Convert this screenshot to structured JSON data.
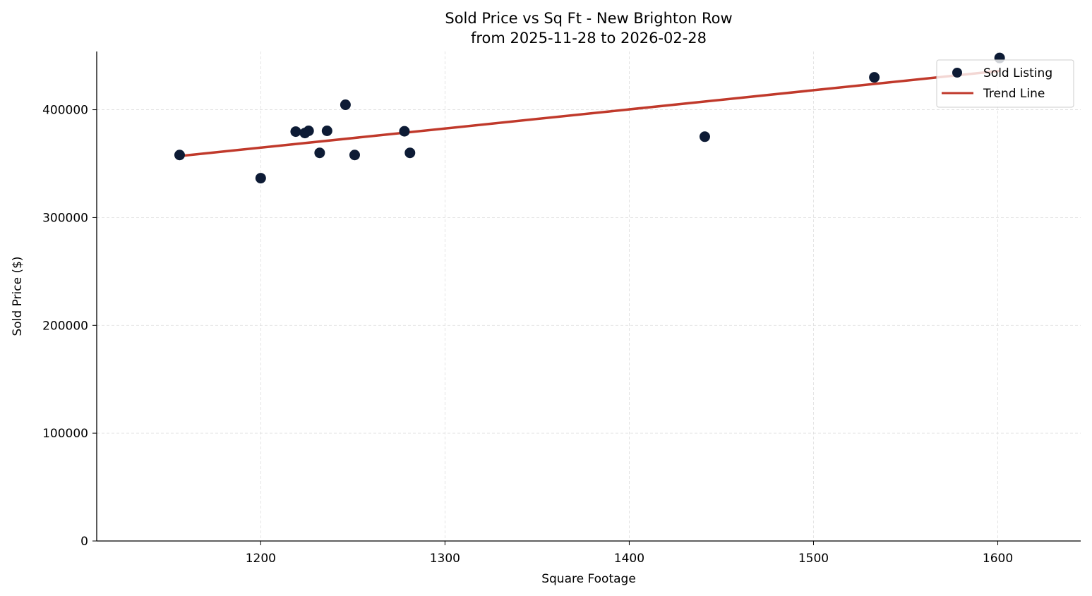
{
  "chart_data": {
    "type": "scatter",
    "title": "Sold Price vs Sq Ft - New Brighton Row",
    "subtitle": "from 2025-11-28 to 2026-02-28",
    "xlabel": "Square Footage",
    "ylabel": "Sold Price ($)",
    "xlim": [
      1111,
      1645
    ],
    "ylim": [
      0,
      454000
    ],
    "xticks": [
      1200,
      1300,
      1400,
      1500,
      1600
    ],
    "yticks": [
      0,
      100000,
      200000,
      300000,
      400000
    ],
    "grid": true,
    "legend_position": "top-right",
    "series": [
      {
        "name": "Sold Listing",
        "kind": "scatter",
        "color": "#0d1b35",
        "x": [
          1156,
          1200,
          1219,
          1224,
          1226,
          1232,
          1236,
          1246,
          1251,
          1278,
          1281,
          1441,
          1533,
          1601
        ],
        "y": [
          358000,
          336500,
          379700,
          378400,
          380400,
          360000,
          380400,
          404600,
          358000,
          380000,
          360000,
          375000,
          430000,
          448000
        ]
      },
      {
        "name": "Trend Line",
        "kind": "line",
        "color": "#c0392b",
        "x": [
          1156,
          1601
        ],
        "y": [
          357000,
          436000
        ]
      }
    ]
  }
}
